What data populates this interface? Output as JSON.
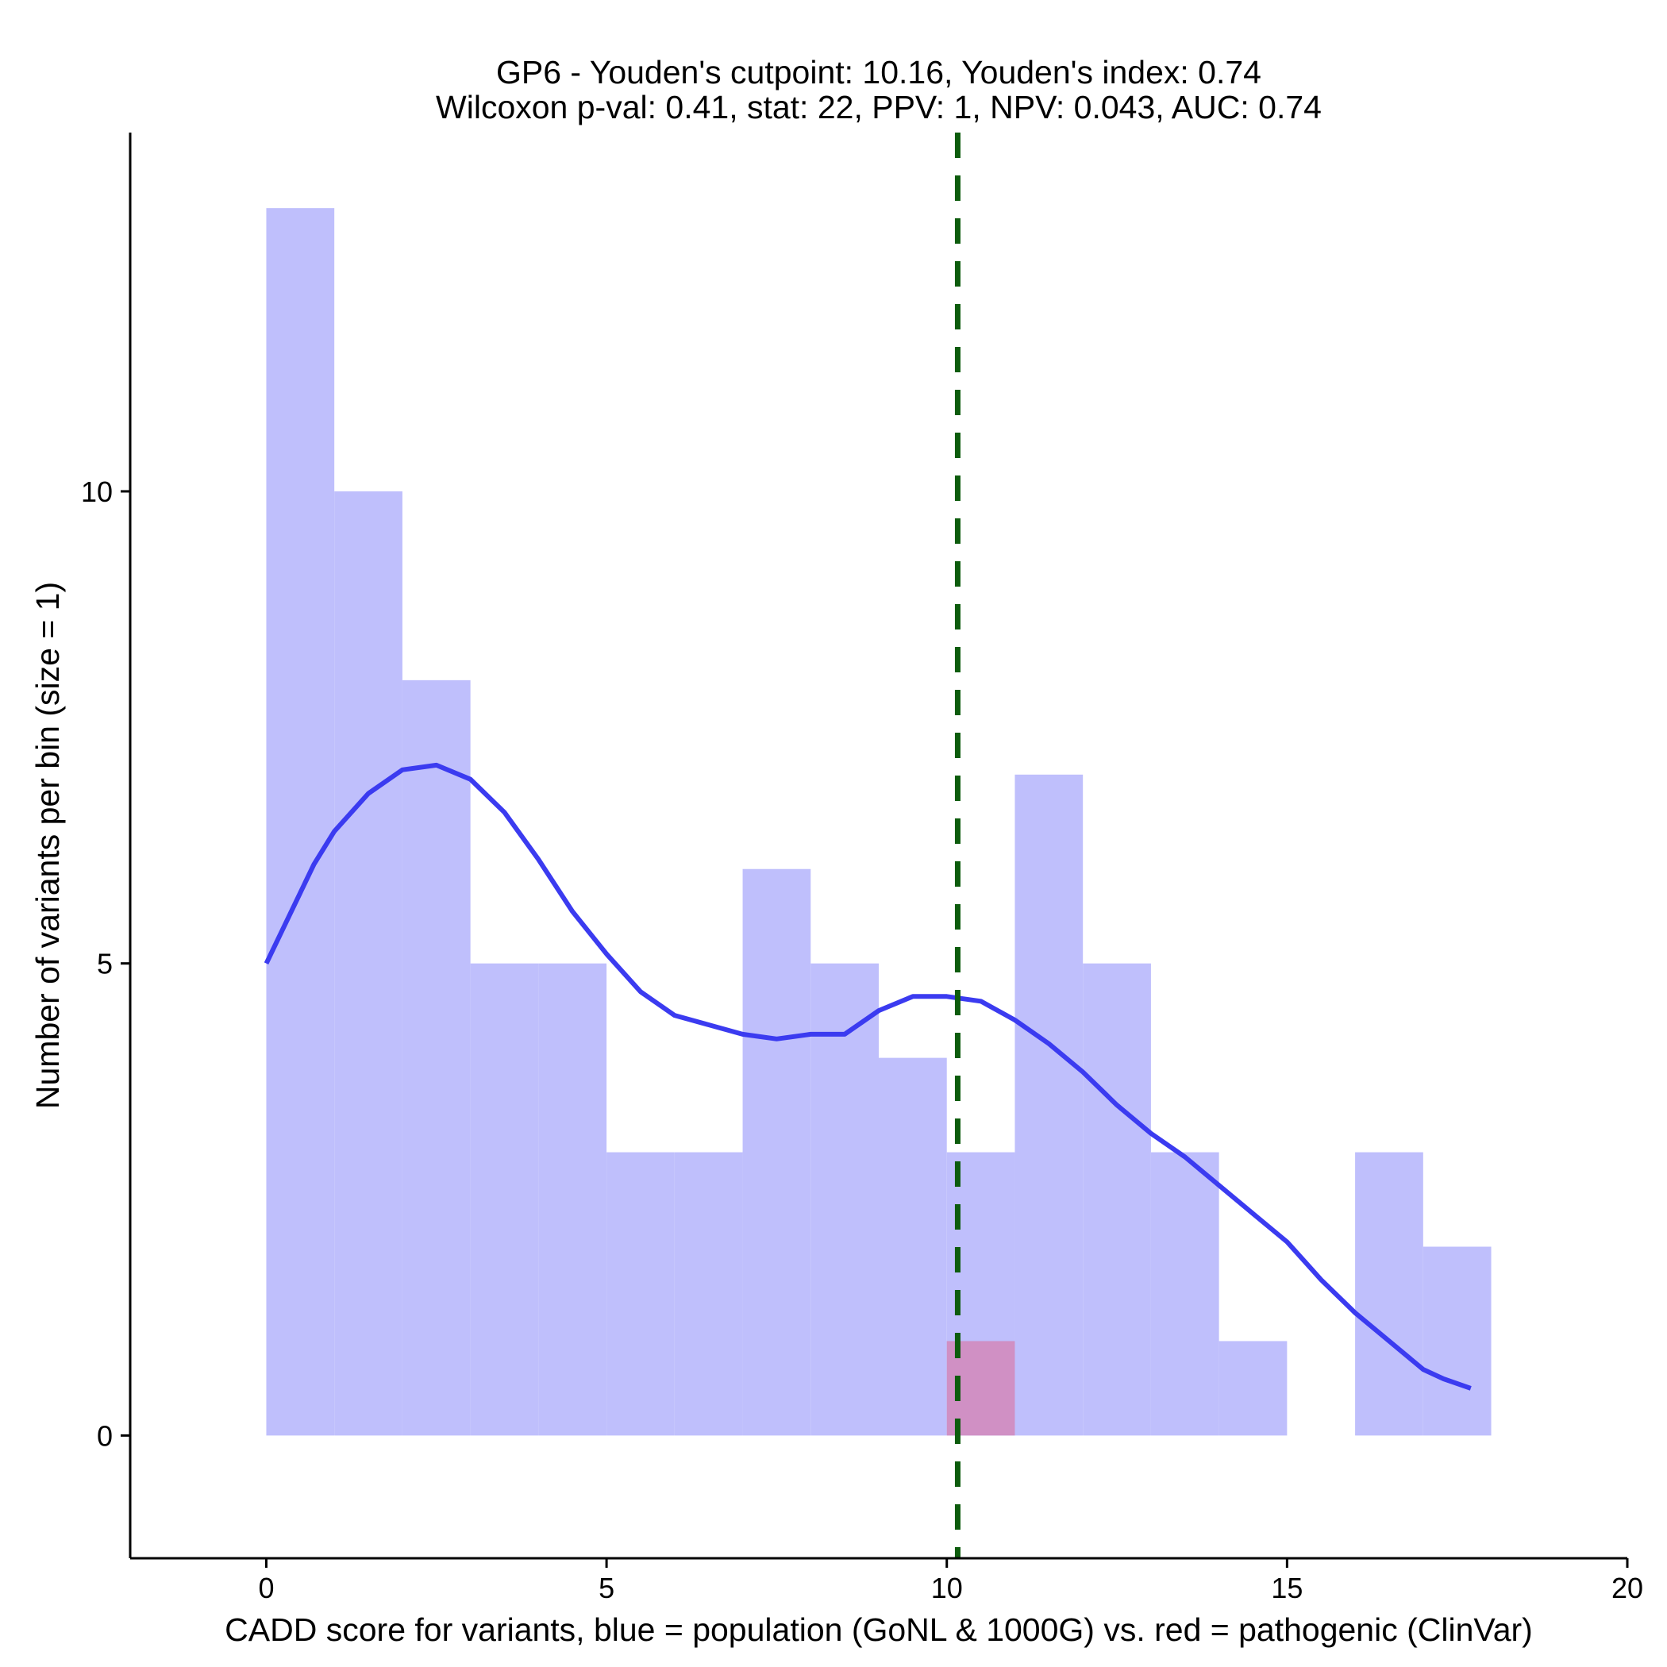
{
  "chart_data": {
    "type": "histogram",
    "title_line1": "GP6 - Youden's cutpoint: 10.16, Youden's index: 0.74",
    "title_line2": "Wilcoxon p-val: 0.41, stat: 22, PPV: 1, NPV: 0.043, AUC: 0.74",
    "xlabel": "CADD score for variants, blue = population (GoNL & 1000G) vs. red = pathogenic (ClinVar)",
    "ylabel": "Number of variants per bin (size = 1)",
    "xlim": [
      -2,
      20
    ],
    "ylim": [
      -1.3,
      13.8
    ],
    "x_ticks": [
      0,
      5,
      10,
      15,
      20
    ],
    "x_tick_labels": [
      "0",
      "5",
      "10",
      "15",
      "20"
    ],
    "y_ticks": [
      0,
      5,
      10
    ],
    "y_tick_labels": [
      "0",
      "5",
      "10"
    ],
    "bin_size": 1,
    "series": [
      {
        "name": "population (GoNL & 1000G)",
        "color": "#bfbffc",
        "bins": [
          {
            "start": 0,
            "end": 1,
            "count": 13
          },
          {
            "start": 1,
            "end": 2,
            "count": 10
          },
          {
            "start": 2,
            "end": 3,
            "count": 8
          },
          {
            "start": 3,
            "end": 4,
            "count": 5
          },
          {
            "start": 4,
            "end": 5,
            "count": 5
          },
          {
            "start": 5,
            "end": 6,
            "count": 3
          },
          {
            "start": 6,
            "end": 7,
            "count": 3
          },
          {
            "start": 7,
            "end": 8,
            "count": 6
          },
          {
            "start": 8,
            "end": 9,
            "count": 5
          },
          {
            "start": 9,
            "end": 10,
            "count": 4
          },
          {
            "start": 10,
            "end": 11,
            "count": 3
          },
          {
            "start": 11,
            "end": 12,
            "count": 7
          },
          {
            "start": 12,
            "end": 13,
            "count": 5
          },
          {
            "start": 13,
            "end": 14,
            "count": 3
          },
          {
            "start": 14,
            "end": 15,
            "count": 1
          },
          {
            "start": 16,
            "end": 17,
            "count": 3
          },
          {
            "start": 17,
            "end": 18,
            "count": 2
          }
        ]
      },
      {
        "name": "pathogenic (ClinVar)",
        "color": "#d090c4",
        "bins": [
          {
            "start": 10,
            "end": 11,
            "count": 1
          }
        ]
      }
    ],
    "density_line": {
      "name": "population density",
      "color": "#3b3bf0",
      "points": [
        [
          0,
          5.0
        ],
        [
          0.3,
          5.45
        ],
        [
          0.7,
          6.05
        ],
        [
          1.0,
          6.4
        ],
        [
          1.5,
          6.8
        ],
        [
          2.0,
          7.05
        ],
        [
          2.5,
          7.1
        ],
        [
          3.0,
          6.95
        ],
        [
          3.5,
          6.6
        ],
        [
          4.0,
          6.1
        ],
        [
          4.5,
          5.55
        ],
        [
          5.0,
          5.1
        ],
        [
          5.5,
          4.7
        ],
        [
          6.0,
          4.45
        ],
        [
          6.5,
          4.35
        ],
        [
          7.0,
          4.25
        ],
        [
          7.5,
          4.2
        ],
        [
          8.0,
          4.25
        ],
        [
          8.5,
          4.25
        ],
        [
          9.0,
          4.5
        ],
        [
          9.5,
          4.65
        ],
        [
          10.0,
          4.65
        ],
        [
          10.5,
          4.6
        ],
        [
          11.0,
          4.4
        ],
        [
          11.5,
          4.15
        ],
        [
          12.0,
          3.85
        ],
        [
          12.5,
          3.5
        ],
        [
          13.0,
          3.2
        ],
        [
          13.5,
          2.95
        ],
        [
          14.0,
          2.65
        ],
        [
          14.5,
          2.35
        ],
        [
          15.0,
          2.05
        ],
        [
          15.5,
          1.65
        ],
        [
          16.0,
          1.3
        ],
        [
          16.5,
          1.0
        ],
        [
          17.0,
          0.7
        ],
        [
          17.3,
          0.6
        ],
        [
          17.7,
          0.5
        ]
      ]
    },
    "cutpoint": {
      "value": 10.16,
      "color": "#0d5c0d",
      "style": "dashed"
    }
  }
}
